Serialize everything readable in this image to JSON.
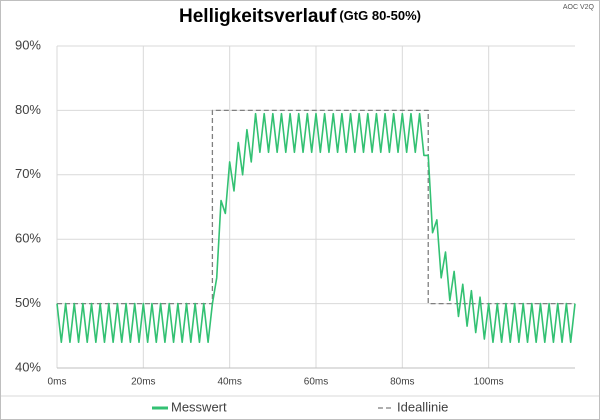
{
  "chart_data": {
    "type": "line",
    "title": "Helligkeitsverlauf",
    "subtitle": "(GtG 80-50%)",
    "corner_label": "AOC V2Q",
    "xlim": [
      0,
      120
    ],
    "xticks": [
      {
        "value": 0,
        "label": "0ms"
      },
      {
        "value": 20,
        "label": "20ms"
      },
      {
        "value": 40,
        "label": "40ms"
      },
      {
        "value": 60,
        "label": "60ms"
      },
      {
        "value": 80,
        "label": "80ms"
      },
      {
        "value": 100,
        "label": "100ms"
      }
    ],
    "ylim": [
      40,
      90
    ],
    "yticks": [
      {
        "value": 40,
        "label": "40%"
      },
      {
        "value": 50,
        "label": "50%"
      },
      {
        "value": 60,
        "label": "60%"
      },
      {
        "value": 70,
        "label": "70%"
      },
      {
        "value": 80,
        "label": "80%"
      },
      {
        "value": 90,
        "label": "90%"
      }
    ],
    "grid": true,
    "legend": "bottom",
    "series": [
      {
        "name": "Messwert",
        "color": "#33c173",
        "dashed": false,
        "x": [
          0,
          1,
          2,
          3,
          4,
          5,
          6,
          7,
          8,
          9,
          10,
          11,
          12,
          13,
          14,
          15,
          16,
          17,
          18,
          19,
          20,
          21,
          22,
          23,
          24,
          25,
          26,
          27,
          28,
          29,
          30,
          31,
          32,
          33,
          34,
          35,
          36,
          37,
          38,
          39,
          40,
          41,
          42,
          43,
          44,
          45,
          46,
          47,
          48,
          49,
          50,
          51,
          52,
          53,
          54,
          55,
          56,
          57,
          58,
          59,
          60,
          61,
          62,
          63,
          64,
          65,
          66,
          67,
          68,
          69,
          70,
          71,
          72,
          73,
          74,
          75,
          76,
          77,
          78,
          79,
          80,
          81,
          82,
          83,
          84,
          85,
          86,
          87,
          88,
          89,
          90,
          91,
          92,
          93,
          94,
          95,
          96,
          97,
          98,
          99,
          100,
          101,
          102,
          103,
          104,
          105,
          106,
          107,
          108,
          109,
          110,
          111,
          112,
          113,
          114,
          115,
          116,
          117,
          118,
          119,
          120
        ],
        "values": [
          50,
          44,
          50,
          44,
          50,
          44,
          50,
          44,
          50,
          44,
          50,
          44,
          50,
          44,
          50,
          44,
          50,
          44,
          50,
          44,
          50,
          44,
          50,
          44,
          50,
          44,
          50,
          44,
          50,
          44,
          50,
          44,
          50,
          44,
          50,
          44,
          50,
          54,
          66,
          64,
          72,
          67.5,
          75,
          70,
          77,
          72,
          79.5,
          73.5,
          79.5,
          73.5,
          79.5,
          73.5,
          79.5,
          73.5,
          79.5,
          73.5,
          79.5,
          73.5,
          79.5,
          73.5,
          79.5,
          73.5,
          79.5,
          73.5,
          79.5,
          73.5,
          79.5,
          73.5,
          79.5,
          73.5,
          79.5,
          73.5,
          79.5,
          73.5,
          79.5,
          73.5,
          79.5,
          73.5,
          79.5,
          73.5,
          79.5,
          73.5,
          79.5,
          73.5,
          79.5,
          73,
          73,
          61,
          63,
          54,
          58,
          50.5,
          55,
          48,
          53,
          46.5,
          52,
          45.5,
          51,
          44.5,
          50,
          44,
          50,
          44,
          50,
          44,
          50,
          44,
          50,
          44,
          50,
          44,
          50,
          44,
          50,
          44,
          50,
          44,
          50,
          44,
          50
        ]
      },
      {
        "name": "Ideallinie",
        "color": "#808080",
        "dashed": true,
        "x": [
          0,
          36,
          36,
          86,
          86,
          120
        ],
        "values": [
          50,
          50,
          80,
          80,
          50,
          50
        ]
      }
    ]
  }
}
